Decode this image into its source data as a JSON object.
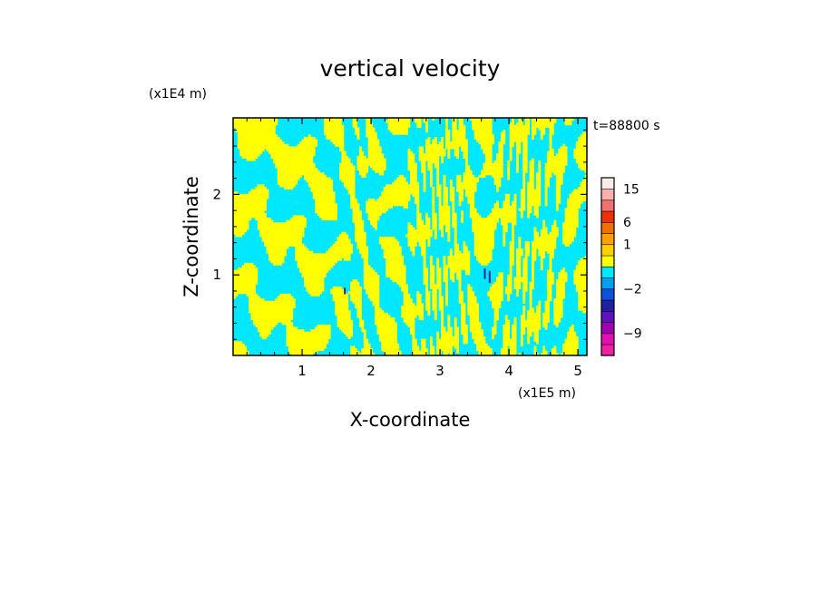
{
  "chart_data": {
    "type": "heatmap",
    "title": "vertical velocity",
    "xlabel": "X-coordinate",
    "ylabel": "Z-coordinate",
    "x_unit": "(x1E5 m)",
    "y_unit": "(x1E4 m)",
    "time_label": "t=88800 s",
    "xlim": [
      0,
      5.13
    ],
    "ylim": [
      0,
      2.95
    ],
    "x_ticks": [
      1,
      2,
      3,
      4,
      5
    ],
    "y_ticks": [
      1,
      2
    ],
    "grid": false,
    "colorbar": {
      "position": "right",
      "tick_labels": [
        {
          "label": "15",
          "value": 15
        },
        {
          "label": "6",
          "value": 6
        },
        {
          "label": "1",
          "value": 1
        },
        {
          "label": "−2",
          "value": -2
        },
        {
          "label": "−9",
          "value": -9
        }
      ],
      "levels": [
        {
          "value": -10,
          "color": "#f020a0"
        },
        {
          "value": -9,
          "color": "#e010b0"
        },
        {
          "value": -7,
          "color": "#a000b0"
        },
        {
          "value": -5,
          "color": "#6010c0"
        },
        {
          "value": -3,
          "color": "#2020a0"
        },
        {
          "value": -2,
          "color": "#1050e0"
        },
        {
          "value": -1,
          "color": "#00a0f0"
        },
        {
          "value": -0.5,
          "color": "#00e8ff"
        },
        {
          "value": 0.5,
          "color": "#ffff00"
        },
        {
          "value": 1,
          "color": "#ffd000"
        },
        {
          "value": 3,
          "color": "#ffa000"
        },
        {
          "value": 6,
          "color": "#f07000"
        },
        {
          "value": 8,
          "color": "#f03000"
        },
        {
          "value": 10,
          "color": "#f07070"
        },
        {
          "value": 15,
          "color": "#f8b0b0"
        },
        {
          "value": 20,
          "color": "#fbeaea"
        }
      ]
    },
    "field_colors": {
      "positive": "#ffff00",
      "negative": "#00e8ff"
    }
  }
}
